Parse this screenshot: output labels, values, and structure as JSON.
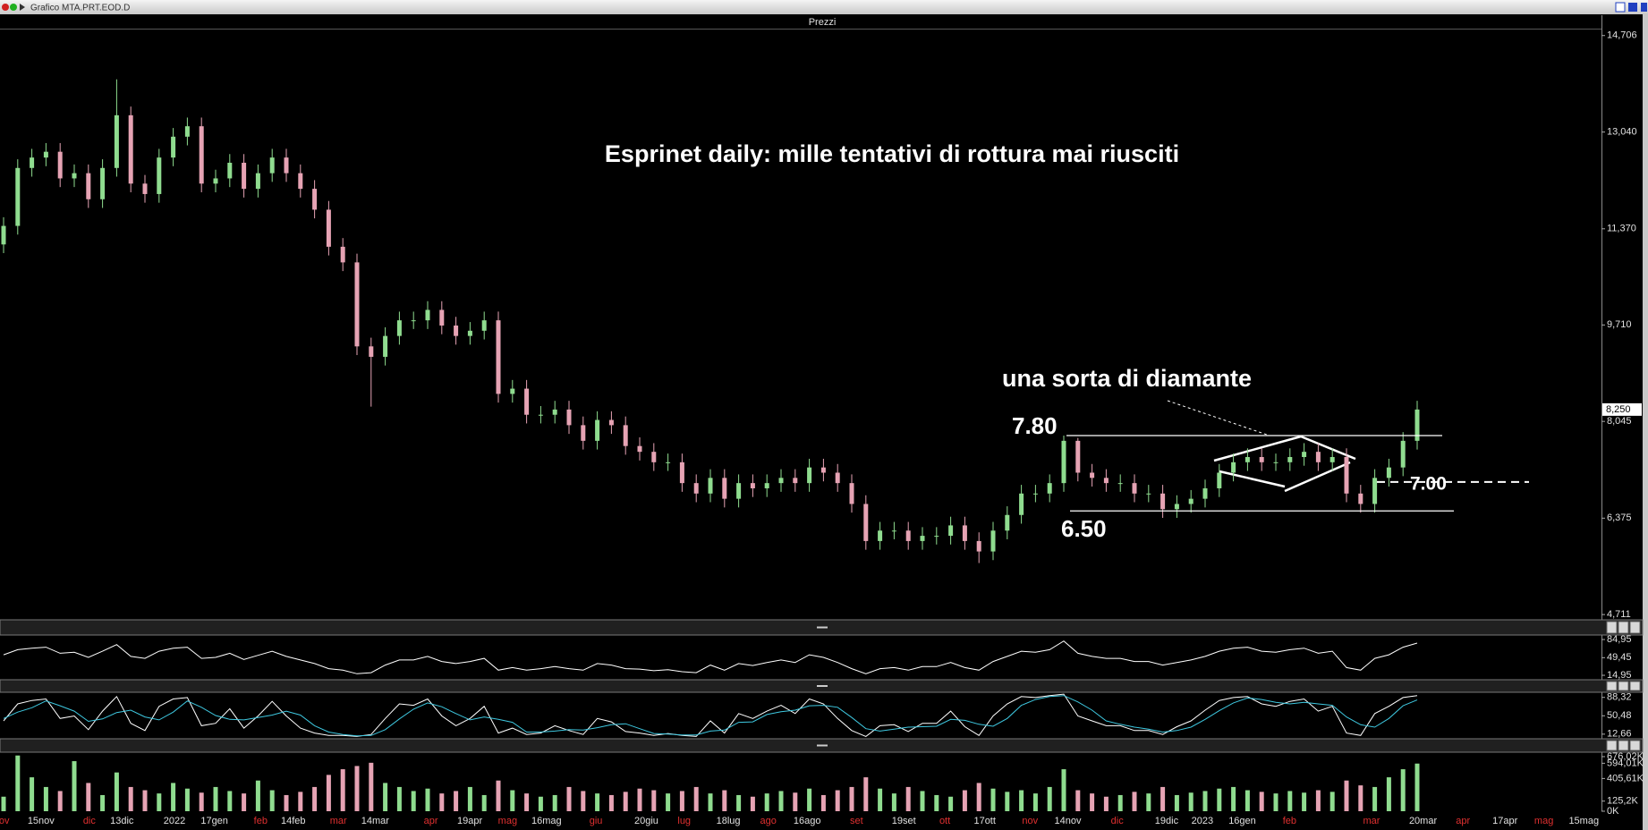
{
  "window": {
    "title": "Grafico MTA.PRT.EOD.D"
  },
  "chart_data": [
    {
      "type": "candlestick",
      "panel_title": "Prezzi",
      "title": "Esprinet daily: mille tentativi di rottura mai riusciti",
      "up_color": "#8fdc8f",
      "down_color": "#e6a3b4",
      "ylim": [
        4.62,
        14.81
      ],
      "yticks": [
        {
          "value": 14.706,
          "label": "14,706"
        },
        {
          "value": 13.04,
          "label": "13,040"
        },
        {
          "value": 11.37,
          "label": "11,370"
        },
        {
          "value": 9.71,
          "label": "9,710"
        },
        {
          "value": 8.045,
          "label": "8,045"
        },
        {
          "value": 6.375,
          "label": "6,375"
        },
        {
          "value": 4.711,
          "label": "4,711"
        }
      ],
      "last_price": {
        "value": 8.25,
        "label": "8,250"
      },
      "x_labels": [
        "ov",
        "15nov",
        "dic",
        "13dic",
        "2022",
        "17gen",
        "feb",
        "14feb",
        "mar",
        "14mar",
        "apr",
        "19apr",
        "mag",
        "16mag",
        "giu",
        "20giu",
        "lug",
        "18lug",
        "ago",
        "16ago",
        "set",
        "19set",
        "ott",
        "17ott",
        "nov",
        "14nov",
        "dic",
        "19dic",
        "2023",
        "16gen",
        "feb",
        "mar",
        "20mar",
        "apr",
        "17apr",
        "mag",
        "15mag"
      ],
      "open": [
        11.1,
        11.42,
        12.42,
        12.6,
        12.7,
        12.24,
        12.33,
        11.88,
        12.42,
        13.33,
        12.15,
        11.97,
        12.6,
        12.96,
        13.14,
        12.15,
        12.24,
        12.51,
        12.06,
        12.33,
        12.6,
        12.33,
        12.06,
        11.7,
        11.06,
        10.79,
        9.34,
        9.16,
        9.52,
        9.79,
        9.79,
        9.97,
        9.7,
        9.52,
        9.61,
        9.79,
        8.52,
        8.61,
        8.16,
        8.16,
        8.25,
        7.98,
        7.71,
        8.07,
        7.98,
        7.62,
        7.52,
        7.34,
        7.34,
        6.98,
        6.8,
        7.07,
        6.71,
        6.98,
        6.89,
        6.98,
        7.07,
        6.98,
        7.25,
        7.16,
        6.98,
        6.62,
        5.98,
        6.16,
        6.16,
        5.98,
        6.07,
        6.07,
        6.25,
        5.98,
        5.8,
        6.16,
        6.43,
        6.8,
        6.8,
        6.98,
        7.71,
        7.16,
        7.07,
        6.98,
        6.98,
        6.8,
        6.8,
        6.53,
        6.62,
        6.71,
        6.89,
        7.16,
        7.34,
        7.43,
        7.34,
        7.34,
        7.43,
        7.52,
        7.34,
        7.43,
        6.8,
        6.62,
        7.07,
        7.25,
        7.71
      ],
      "high": [
        11.57,
        12.57,
        12.75,
        12.85,
        12.85,
        12.48,
        12.48,
        12.57,
        13.95,
        13.48,
        12.3,
        12.75,
        13.11,
        13.29,
        13.29,
        12.39,
        12.66,
        12.66,
        12.48,
        12.75,
        12.75,
        12.48,
        12.21,
        11.85,
        11.21,
        10.94,
        9.49,
        9.67,
        9.94,
        9.94,
        10.12,
        10.12,
        9.85,
        9.76,
        9.94,
        9.94,
        8.76,
        8.76,
        8.31,
        8.4,
        8.4,
        8.13,
        8.22,
        8.22,
        8.13,
        7.77,
        7.67,
        7.49,
        7.49,
        7.13,
        7.22,
        7.22,
        7.13,
        7.13,
        7.13,
        7.22,
        7.22,
        7.4,
        7.4,
        7.31,
        7.13,
        6.77,
        6.31,
        6.31,
        6.31,
        6.22,
        6.22,
        6.4,
        6.4,
        6.13,
        6.31,
        6.58,
        6.95,
        6.95,
        7.13,
        7.8,
        7.76,
        7.31,
        7.22,
        7.13,
        7.13,
        6.95,
        6.95,
        6.77,
        6.86,
        7.04,
        7.31,
        7.49,
        7.58,
        7.58,
        7.49,
        7.58,
        7.67,
        7.67,
        7.58,
        7.58,
        6.95,
        7.22,
        7.4,
        7.86,
        8.4
      ],
      "low": [
        10.95,
        11.27,
        12.27,
        12.45,
        12.09,
        12.09,
        11.73,
        11.73,
        12.27,
        12.0,
        11.82,
        11.82,
        12.45,
        12.81,
        12.0,
        12.0,
        12.09,
        11.91,
        11.91,
        12.18,
        12.18,
        11.91,
        11.55,
        10.91,
        10.64,
        9.19,
        8.3,
        9.01,
        9.37,
        9.64,
        9.64,
        9.55,
        9.37,
        9.37,
        9.46,
        8.37,
        8.37,
        8.01,
        8.01,
        8.01,
        7.83,
        7.56,
        7.56,
        7.83,
        7.47,
        7.37,
        7.19,
        7.19,
        6.83,
        6.65,
        6.65,
        6.56,
        6.56,
        6.74,
        6.74,
        6.83,
        6.83,
        6.83,
        7.01,
        6.83,
        6.47,
        5.83,
        5.83,
        6.01,
        5.83,
        5.83,
        5.92,
        5.92,
        5.83,
        5.6,
        5.65,
        6.01,
        6.28,
        6.65,
        6.65,
        6.83,
        7.01,
        6.92,
        6.83,
        6.83,
        6.65,
        6.65,
        6.38,
        6.38,
        6.47,
        6.56,
        6.74,
        7.01,
        7.19,
        7.19,
        7.19,
        7.19,
        7.28,
        7.19,
        7.19,
        6.65,
        6.47,
        6.47,
        6.92,
        7.1,
        7.56
      ],
      "close": [
        11.42,
        12.42,
        12.6,
        12.7,
        12.24,
        12.33,
        11.88,
        12.42,
        13.33,
        12.15,
        11.97,
        12.6,
        12.96,
        13.14,
        12.15,
        12.24,
        12.51,
        12.06,
        12.33,
        12.6,
        12.33,
        12.06,
        11.7,
        11.06,
        10.79,
        9.34,
        9.16,
        9.52,
        9.79,
        9.79,
        9.97,
        9.7,
        9.52,
        9.61,
        9.79,
        8.52,
        8.61,
        8.16,
        8.16,
        8.25,
        7.98,
        7.71,
        8.07,
        7.98,
        7.62,
        7.52,
        7.34,
        7.34,
        6.98,
        6.8,
        7.07,
        6.71,
        6.98,
        6.89,
        6.98,
        7.07,
        6.98,
        7.25,
        7.16,
        6.98,
        6.62,
        5.98,
        6.16,
        6.16,
        5.98,
        6.07,
        6.07,
        6.25,
        5.98,
        5.8,
        6.16,
        6.43,
        6.8,
        6.8,
        6.98,
        7.71,
        7.16,
        7.07,
        6.98,
        6.98,
        6.8,
        6.8,
        6.53,
        6.62,
        6.71,
        6.89,
        7.16,
        7.34,
        7.43,
        7.34,
        7.34,
        7.43,
        7.52,
        7.34,
        7.43,
        6.8,
        6.62,
        7.07,
        7.25,
        7.71,
        8.25
      ],
      "annotations": [
        {
          "text": "una sorta di diamante"
        }
      ],
      "levels": [
        {
          "value": 7.8,
          "label": "7.80"
        },
        {
          "value": 6.5,
          "label": "6.50"
        },
        {
          "value": 7.0,
          "label": "7.00",
          "dashed": true
        }
      ]
    },
    {
      "type": "line",
      "ylim": [
        8,
        92
      ],
      "yticks": [
        {
          "value": 84.95,
          "label": "84,95"
        },
        {
          "value": 49.45,
          "label": "49,45"
        },
        {
          "value": 14.95,
          "label": "14,95"
        }
      ],
      "series": [
        {
          "color": "#ffffff",
          "values": [
            55,
            65,
            68,
            70,
            58,
            60,
            50,
            62,
            75,
            52,
            48,
            62,
            68,
            70,
            48,
            50,
            58,
            46,
            54,
            62,
            52,
            45,
            38,
            28,
            25,
            18,
            20,
            35,
            45,
            45,
            52,
            42,
            38,
            42,
            48,
            25,
            30,
            25,
            28,
            32,
            28,
            25,
            38,
            35,
            28,
            27,
            24,
            26,
            22,
            20,
            35,
            25,
            38,
            34,
            40,
            45,
            40,
            55,
            50,
            40,
            28,
            18,
            28,
            30,
            25,
            32,
            32,
            40,
            30,
            25,
            42,
            52,
            62,
            60,
            65,
            82,
            58,
            52,
            48,
            48,
            42,
            42,
            35,
            40,
            45,
            52,
            62,
            68,
            70,
            62,
            60,
            65,
            68,
            58,
            62,
            30,
            25,
            48,
            55,
            70,
            78
          ]
        }
      ]
    },
    {
      "type": "line",
      "ylim": [
        5,
        97
      ],
      "yticks": [
        {
          "value": 88.32,
          "label": "88,32"
        },
        {
          "value": 50.48,
          "label": "50,48"
        },
        {
          "value": 12.66,
          "label": "12,66"
        }
      ],
      "series": [
        {
          "color": "#ffffff",
          "values": [
            40,
            75,
            82,
            85,
            45,
            50,
            22,
            60,
            90,
            35,
            20,
            70,
            85,
            88,
            30,
            35,
            65,
            25,
            50,
            80,
            50,
            25,
            15,
            10,
            10,
            8,
            12,
            45,
            75,
            72,
            85,
            50,
            30,
            45,
            70,
            15,
            25,
            12,
            15,
            30,
            20,
            12,
            45,
            38,
            18,
            15,
            10,
            14,
            10,
            8,
            40,
            15,
            55,
            45,
            60,
            72,
            55,
            85,
            75,
            45,
            20,
            8,
            30,
            32,
            18,
            35,
            35,
            60,
            28,
            10,
            50,
            75,
            90,
            88,
            92,
            95,
            50,
            40,
            30,
            30,
            20,
            20,
            12,
            28,
            40,
            62,
            82,
            88,
            90,
            75,
            70,
            80,
            85,
            60,
            70,
            15,
            10,
            55,
            70,
            88,
            92
          ]
        },
        {
          "color": "#3ec8e0",
          "values": [
            45,
            58,
            67,
            81,
            71,
            60,
            39,
            44,
            57,
            62,
            48,
            42,
            58,
            81,
            68,
            51,
            43,
            42,
            47,
            52,
            60,
            52,
            30,
            17,
            12,
            9,
            10,
            22,
            44,
            64,
            77,
            69,
            55,
            42,
            48,
            43,
            37,
            17,
            17,
            19,
            22,
            21,
            26,
            32,
            34,
            24,
            14,
            13,
            11,
            11,
            19,
            21,
            37,
            38,
            53,
            59,
            62,
            71,
            72,
            68,
            47,
            24,
            19,
            23,
            27,
            28,
            29,
            43,
            41,
            33,
            29,
            45,
            72,
            84,
            90,
            92,
            79,
            62,
            40,
            33,
            27,
            23,
            17,
            20,
            27,
            43,
            61,
            77,
            87,
            84,
            78,
            75,
            78,
            75,
            72,
            48,
            32,
            27,
            45,
            71,
            83
          ]
        }
      ]
    },
    {
      "type": "bar",
      "ylim": [
        0,
        720
      ],
      "yticks": [
        {
          "value": 676.02,
          "label": "676,02K"
        },
        {
          "value": 594.01,
          "label": "594,01K"
        },
        {
          "value": 405.61,
          "label": "405,61K"
        },
        {
          "value": 125.2,
          "label": "125,2K"
        },
        {
          "value": 0,
          "label": "0K"
        }
      ],
      "values": [
        180,
        690,
        420,
        300,
        250,
        620,
        350,
        200,
        480,
        300,
        260,
        220,
        350,
        280,
        230,
        300,
        250,
        220,
        380,
        260,
        200,
        240,
        300,
        450,
        520,
        560,
        600,
        350,
        300,
        250,
        280,
        220,
        250,
        300,
        200,
        380,
        260,
        220,
        180,
        200,
        300,
        250,
        220,
        200,
        240,
        280,
        260,
        220,
        250,
        300,
        220,
        260,
        200,
        180,
        220,
        250,
        230,
        280,
        200,
        260,
        300,
        420,
        280,
        220,
        300,
        250,
        200,
        180,
        260,
        350,
        280,
        240,
        260,
        220,
        300,
        520,
        260,
        220,
        180,
        200,
        240,
        220,
        300,
        200,
        230,
        250,
        280,
        300,
        260,
        240,
        220,
        250,
        230,
        260,
        240,
        380,
        320,
        300,
        420,
        520,
        590
      ]
    }
  ]
}
